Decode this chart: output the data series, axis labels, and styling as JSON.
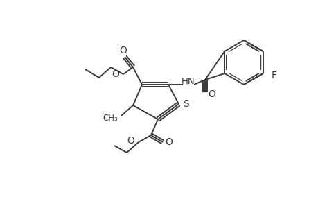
{
  "background_color": "#ffffff",
  "line_color": "#3a3a3a",
  "bond_lw": 1.4,
  "figsize": [
    4.6,
    3.0
  ],
  "dpi": 100,
  "xlim": [
    0,
    460
  ],
  "ylim": [
    0,
    300
  ]
}
